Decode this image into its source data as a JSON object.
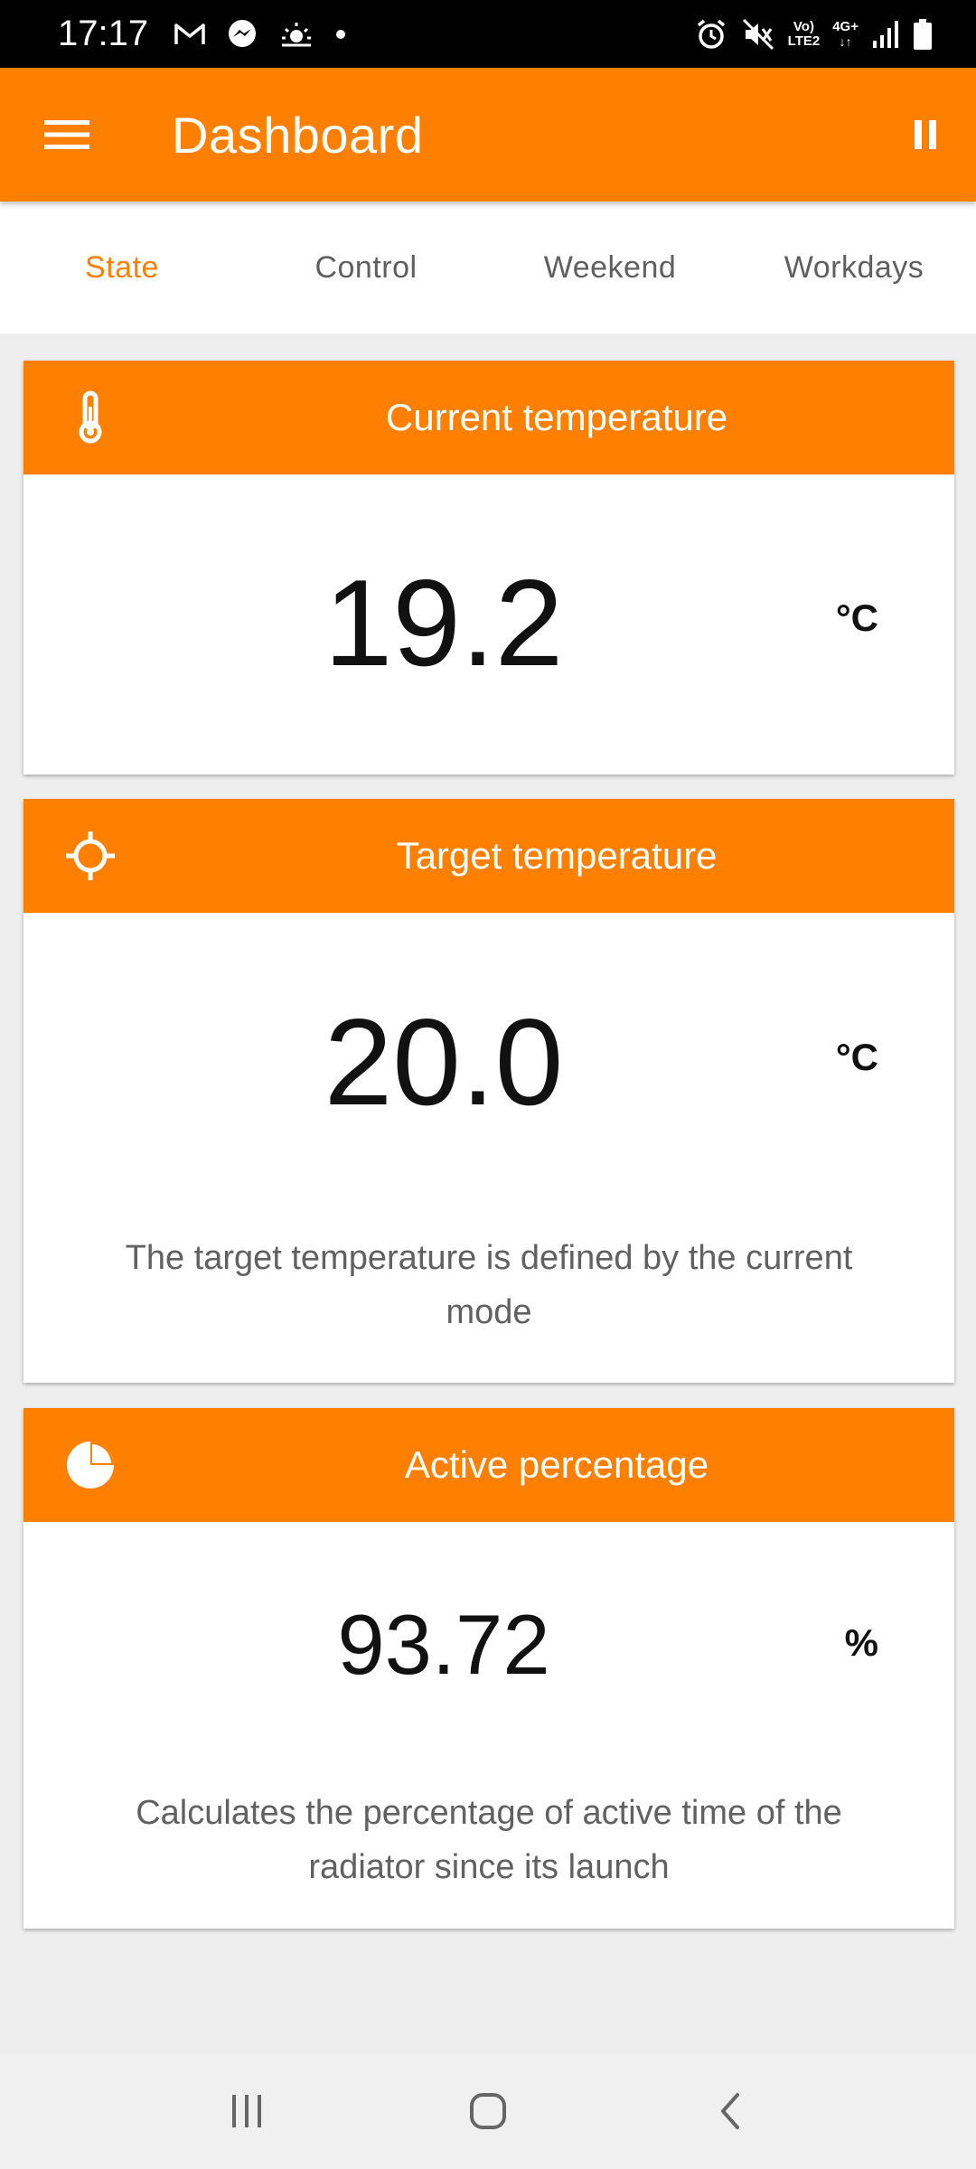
{
  "status_bar": {
    "time": "17:17",
    "net_top": "Vo)",
    "net_bottom": "LTE2",
    "net_type": "4G+",
    "left_icons": [
      "gmail-icon",
      "messenger-icon",
      "weather-icon",
      "dot-icon"
    ],
    "right_icons": [
      "alarm-icon",
      "mute-icon",
      "signal-icon",
      "battery-icon"
    ]
  },
  "app_bar": {
    "title": "Dashboard",
    "menu_icon": "menu-icon",
    "action_icon": "pause-icon"
  },
  "tabs": [
    {
      "label": "State",
      "active": true
    },
    {
      "label": "Control",
      "active": false
    },
    {
      "label": "Weekend",
      "active": false
    },
    {
      "label": "Workdays",
      "active": false
    }
  ],
  "cards": {
    "current": {
      "title": "Current temperature",
      "icon": "thermometer-icon",
      "value": "19.2",
      "unit": "°C"
    },
    "target": {
      "title": "Target temperature",
      "icon": "crosshair-icon",
      "value": "20.0",
      "unit": "°C",
      "description": "The target temperature is defined by the current mode"
    },
    "active": {
      "title": "Active percentage",
      "icon": "pie-chart-icon",
      "value": "93.72",
      "unit": "%",
      "description": "Calculates the percentage of active time of the radiator since its launch"
    }
  },
  "colors": {
    "accent": "#ff8000",
    "background": "#eeeeee",
    "tab_inactive": "#5f5f5f"
  },
  "nav_bar": [
    "recent-apps-icon",
    "home-icon",
    "back-icon"
  ]
}
